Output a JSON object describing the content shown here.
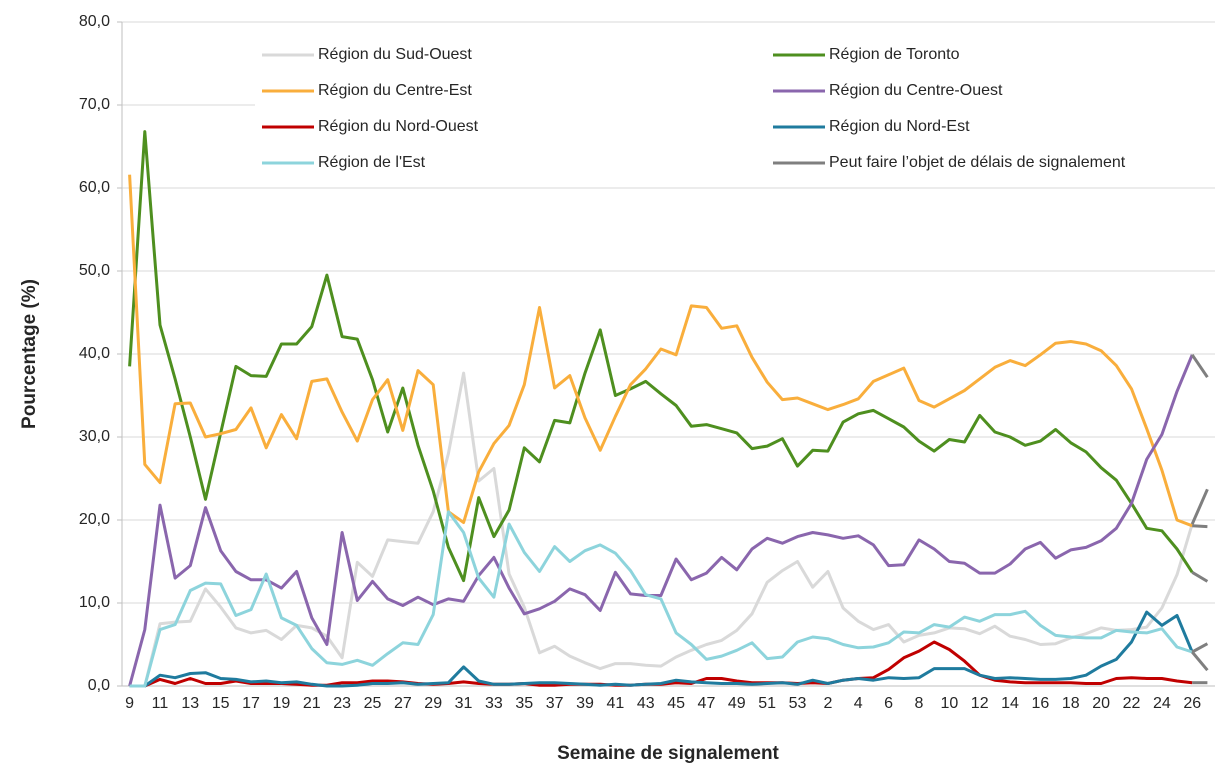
{
  "chart_data": {
    "type": "line",
    "categories": [
      9,
      null,
      11,
      null,
      13,
      null,
      15,
      null,
      17,
      null,
      19,
      null,
      21,
      null,
      23,
      null,
      25,
      null,
      27,
      null,
      29,
      null,
      31,
      null,
      33,
      null,
      35,
      null,
      37,
      null,
      39,
      null,
      41,
      null,
      43,
      null,
      45,
      null,
      47,
      null,
      49,
      null,
      51,
      null,
      53,
      null,
      2,
      null,
      4,
      null,
      6,
      null,
      8,
      null,
      10,
      null,
      12,
      null,
      14,
      null,
      16,
      null,
      18,
      null,
      20,
      null,
      22,
      null,
      24,
      null,
      26,
      null
    ],
    "series": [
      {
        "name": "Région du Sud-Ouest",
        "color": "#d9d9d9",
        "values": [
          0,
          0,
          7.5,
          7.7,
          7.8,
          11.7,
          9.5,
          7,
          6.4,
          6.7,
          5.6,
          7.3,
          7,
          6,
          3.4,
          14.9,
          13.2,
          17.6,
          17.4,
          17.2,
          21,
          28,
          37.7,
          24.7,
          26.2,
          13.5,
          9.5,
          4,
          4.8,
          3.6,
          2.8,
          2.1,
          2.7,
          2.7,
          2.5,
          2.4,
          3.5,
          4.3,
          5,
          5.5,
          6.7,
          8.7,
          12.5,
          13.9,
          15,
          11.9,
          13.8,
          9.4,
          7.8,
          6.8,
          7.4,
          5.3,
          6.1,
          6.4,
          7,
          6.9,
          6.3,
          7.2,
          6,
          5.6,
          5,
          5.1,
          5.8,
          6.3,
          7,
          6.7,
          6.8,
          7.1,
          9.4,
          13.4,
          19.5,
          23.7
        ]
      },
      {
        "name": "Région de Toronto",
        "color": "#4e8f1f",
        "values": [
          38.5,
          66.8,
          43.5,
          37,
          30,
          22.5,
          30.5,
          38.5,
          37.4,
          37.3,
          41.2,
          41.2,
          43.3,
          49.5,
          42.1,
          41.8,
          36.9,
          30.6,
          35.9,
          29,
          23.5,
          16.7,
          12.7,
          22.7,
          18,
          21.2,
          28.7,
          27,
          32,
          31.7,
          37.7,
          42.9,
          35,
          35.8,
          36.7,
          35.2,
          33.8,
          31.3,
          31.5,
          31,
          30.5,
          28.6,
          28.9,
          29.8,
          26.5,
          28.4,
          28.3,
          31.8,
          32.8,
          33.2,
          32.2,
          31.2,
          29.5,
          28.3,
          29.7,
          29.4,
          32.6,
          30.6,
          30,
          29,
          29.5,
          30.9,
          29.3,
          28.2,
          26.3,
          24.8,
          22,
          19,
          18.7,
          16.5,
          13.7,
          12.6
        ]
      },
      {
        "name": "Région du Centre-Est",
        "color": "#f9ae3c",
        "values": [
          61.6,
          26.7,
          24.5,
          34,
          34.1,
          30,
          30.4,
          30.9,
          33.5,
          28.7,
          32.7,
          29.8,
          36.7,
          37,
          33,
          29.5,
          34.5,
          36.9,
          30.8,
          38,
          36.3,
          21,
          19.7,
          25.8,
          29.2,
          31.4,
          36.3,
          45.6,
          35.9,
          37.4,
          32.3,
          28.4,
          32.5,
          36.3,
          38.2,
          40.6,
          39.9,
          45.8,
          45.6,
          43.1,
          43.4,
          39.6,
          36.6,
          34.5,
          34.7,
          34,
          33.3,
          33.9,
          34.6,
          36.7,
          37.5,
          38.3,
          34.4,
          33.6,
          34.6,
          35.6,
          37,
          38.4,
          39.2,
          38.6,
          39.9,
          41.3,
          41.5,
          41.2,
          40.4,
          38.6,
          35.8,
          31,
          26,
          20,
          19.3,
          19.2
        ]
      },
      {
        "name": "Région du Centre-Ouest",
        "color": "#8a66ad",
        "values": [
          0,
          6.8,
          21.8,
          13,
          14.5,
          21.5,
          16.3,
          13.8,
          12.8,
          12.8,
          11.8,
          13.8,
          8.2,
          5,
          18.5,
          10.3,
          12.6,
          10.5,
          9.7,
          10.7,
          9.8,
          10.5,
          10.2,
          13.3,
          15.5,
          11.8,
          8.7,
          9.3,
          10.2,
          11.7,
          11,
          9.1,
          13.7,
          11.1,
          10.9,
          10.9,
          15.3,
          12.8,
          13.6,
          15.5,
          14,
          16.5,
          17.8,
          17.2,
          18,
          18.5,
          18.2,
          17.8,
          18.1,
          17,
          14.5,
          14.6,
          17.6,
          16.5,
          15,
          14.8,
          13.6,
          13.6,
          14.7,
          16.5,
          17.3,
          15.4,
          16.4,
          16.7,
          17.5,
          19,
          22,
          27.3,
          30.3,
          35.5,
          39.9,
          37.2
        ]
      },
      {
        "name": "Région du Nord-Ouest",
        "color": "#c00000",
        "values": [
          0,
          0,
          0.8,
          0.3,
          0.9,
          0.3,
          0.3,
          0.6,
          0.3,
          0.3,
          0.3,
          0.2,
          0.1,
          0.1,
          0.4,
          0.4,
          0.6,
          0.6,
          0.5,
          0.3,
          0.2,
          0.3,
          0.5,
          0.3,
          0.2,
          0.2,
          0.3,
          0.1,
          0.1,
          0.2,
          0.2,
          0.2,
          0.1,
          0.1,
          0.2,
          0.2,
          0.4,
          0.3,
          0.9,
          0.9,
          0.6,
          0.4,
          0.4,
          0.4,
          0.3,
          0.4,
          0.3,
          0.7,
          0.9,
          1,
          2,
          3.4,
          4.2,
          5.3,
          4.4,
          3,
          1.3,
          0.7,
          0.5,
          0.4,
          0.4,
          0.4,
          0.4,
          0.3,
          0.3,
          0.9,
          1,
          0.9,
          0.9,
          0.6,
          0.4,
          0.4
        ]
      },
      {
        "name": "Région du Nord-Est",
        "color": "#1f7b9e",
        "values": [
          0,
          0,
          1.3,
          1,
          1.5,
          1.6,
          0.9,
          0.8,
          0.5,
          0.6,
          0.4,
          0.5,
          0.2,
          0,
          0,
          0.1,
          0.3,
          0.3,
          0.4,
          0.2,
          0.3,
          0.4,
          2.3,
          0.6,
          0.2,
          0.2,
          0.3,
          0.4,
          0.4,
          0.3,
          0.2,
          0.1,
          0.2,
          0.1,
          0.2,
          0.3,
          0.7,
          0.5,
          0.4,
          0.3,
          0.3,
          0.2,
          0.3,
          0.4,
          0.2,
          0.7,
          0.3,
          0.7,
          0.9,
          0.7,
          1,
          0.9,
          1,
          2.1,
          2.1,
          2.1,
          1.3,
          0.9,
          1,
          0.9,
          0.8,
          0.8,
          0.9,
          1.3,
          2.4,
          3.2,
          5.3,
          8.9,
          7.3,
          8.5,
          4.1,
          1.9
        ]
      },
      {
        "name": "Région de l'Est",
        "color": "#8dd4dc",
        "values": [
          0,
          0,
          6.8,
          7.4,
          11.5,
          12.4,
          12.3,
          8.5,
          9.2,
          13.5,
          8.2,
          7.3,
          4.5,
          2.8,
          2.6,
          3.1,
          2.5,
          3.9,
          5.2,
          5,
          8.6,
          21,
          18.5,
          13,
          10.7,
          19.5,
          16.1,
          13.8,
          16.8,
          15,
          16.3,
          17,
          16,
          13.9,
          11,
          10.5,
          6.4,
          5,
          3.2,
          3.6,
          4.3,
          5.2,
          3.3,
          3.5,
          5.3,
          5.9,
          5.7,
          5,
          4.6,
          4.7,
          5.2,
          6.5,
          6.4,
          7.4,
          7.1,
          8.3,
          7.8,
          8.6,
          8.6,
          9,
          7.3,
          6.1,
          5.9,
          5.8,
          5.8,
          6.7,
          6.5,
          6.4,
          6.9,
          4.7,
          4.1,
          5.1
        ]
      }
    ],
    "delayed": {
      "name": "Peut faire l’objet de délais de signalement",
      "color": "#7f7f7f",
      "last_points": 2
    },
    "ylabel": "Pourcentage (%)",
    "xlabel": "Semaine de signalement",
    "ylim": [
      0,
      80
    ],
    "yticks": [
      {
        "value": 0,
        "label": "0,0"
      },
      {
        "value": 10,
        "label": "10,0"
      },
      {
        "value": 20,
        "label": "20,0"
      },
      {
        "value": 30,
        "label": "30,0"
      },
      {
        "value": 40,
        "label": "40,0"
      },
      {
        "value": 50,
        "label": "50,0"
      },
      {
        "value": 60,
        "label": "60,0"
      },
      {
        "value": 70,
        "label": "70,0"
      },
      {
        "value": 80,
        "label": "80,0"
      }
    ],
    "grid": true,
    "legend": "top"
  }
}
